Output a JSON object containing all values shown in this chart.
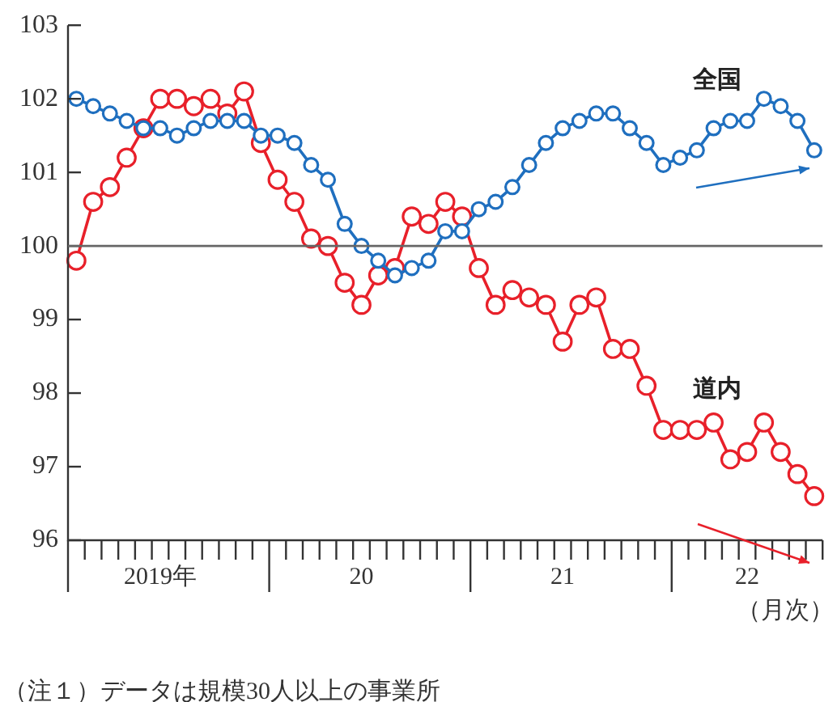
{
  "chart_data": {
    "type": "line",
    "xlabel": "（月次）",
    "categories": [
      null,
      null,
      null,
      null,
      null,
      "2019年",
      null,
      null,
      null,
      null,
      null,
      null,
      null,
      null,
      null,
      null,
      null,
      "20",
      null,
      null,
      null,
      null,
      null,
      null,
      null,
      null,
      null,
      null,
      null,
      "21",
      null,
      null,
      null,
      null,
      null,
      null,
      null,
      null,
      null,
      null,
      "22",
      null,
      null,
      null,
      null
    ],
    "series": [
      {
        "name": "全国",
        "color": "#1f6fbf",
        "values": [
          102.0,
          101.9,
          101.8,
          101.7,
          101.6,
          101.6,
          101.5,
          101.6,
          101.7,
          101.7,
          101.7,
          101.5,
          101.5,
          101.4,
          101.1,
          100.9,
          100.3,
          100.0,
          99.8,
          99.6,
          99.7,
          99.8,
          100.2,
          100.2,
          100.5,
          100.6,
          100.8,
          101.1,
          101.4,
          101.6,
          101.7,
          101.8,
          101.8,
          101.6,
          101.4,
          101.1,
          101.2,
          101.3,
          101.6,
          101.7,
          101.7,
          102.0,
          101.9,
          101.7,
          101.3
        ]
      },
      {
        "name": "道内",
        "color": "#e8202a",
        "values": [
          99.8,
          100.6,
          100.8,
          101.2,
          101.6,
          102.0,
          102.0,
          101.9,
          102.0,
          101.8,
          102.1,
          101.4,
          100.9,
          100.6,
          100.1,
          100.0,
          99.5,
          99.2,
          99.6,
          99.7,
          100.4,
          100.3,
          100.6,
          100.4,
          99.7,
          99.2,
          99.4,
          99.3,
          99.2,
          98.7,
          99.2,
          99.3,
          98.6,
          98.6,
          98.1,
          97.5,
          97.5,
          97.5,
          97.6,
          97.1,
          97.2,
          97.6,
          97.2,
          96.9,
          96.6
        ]
      }
    ],
    "ylim": [
      96,
      103
    ],
    "yticks": [
      96,
      97,
      98,
      99,
      100,
      101,
      102,
      103
    ],
    "ref_lines": [
      {
        "axis": "y",
        "value": 100,
        "color": "#666666"
      }
    ],
    "grid": false,
    "legend": false,
    "marker": "circle",
    "line_style": "solid",
    "annotations": [
      "（注１）データは規模30人以上の事業所"
    ]
  }
}
